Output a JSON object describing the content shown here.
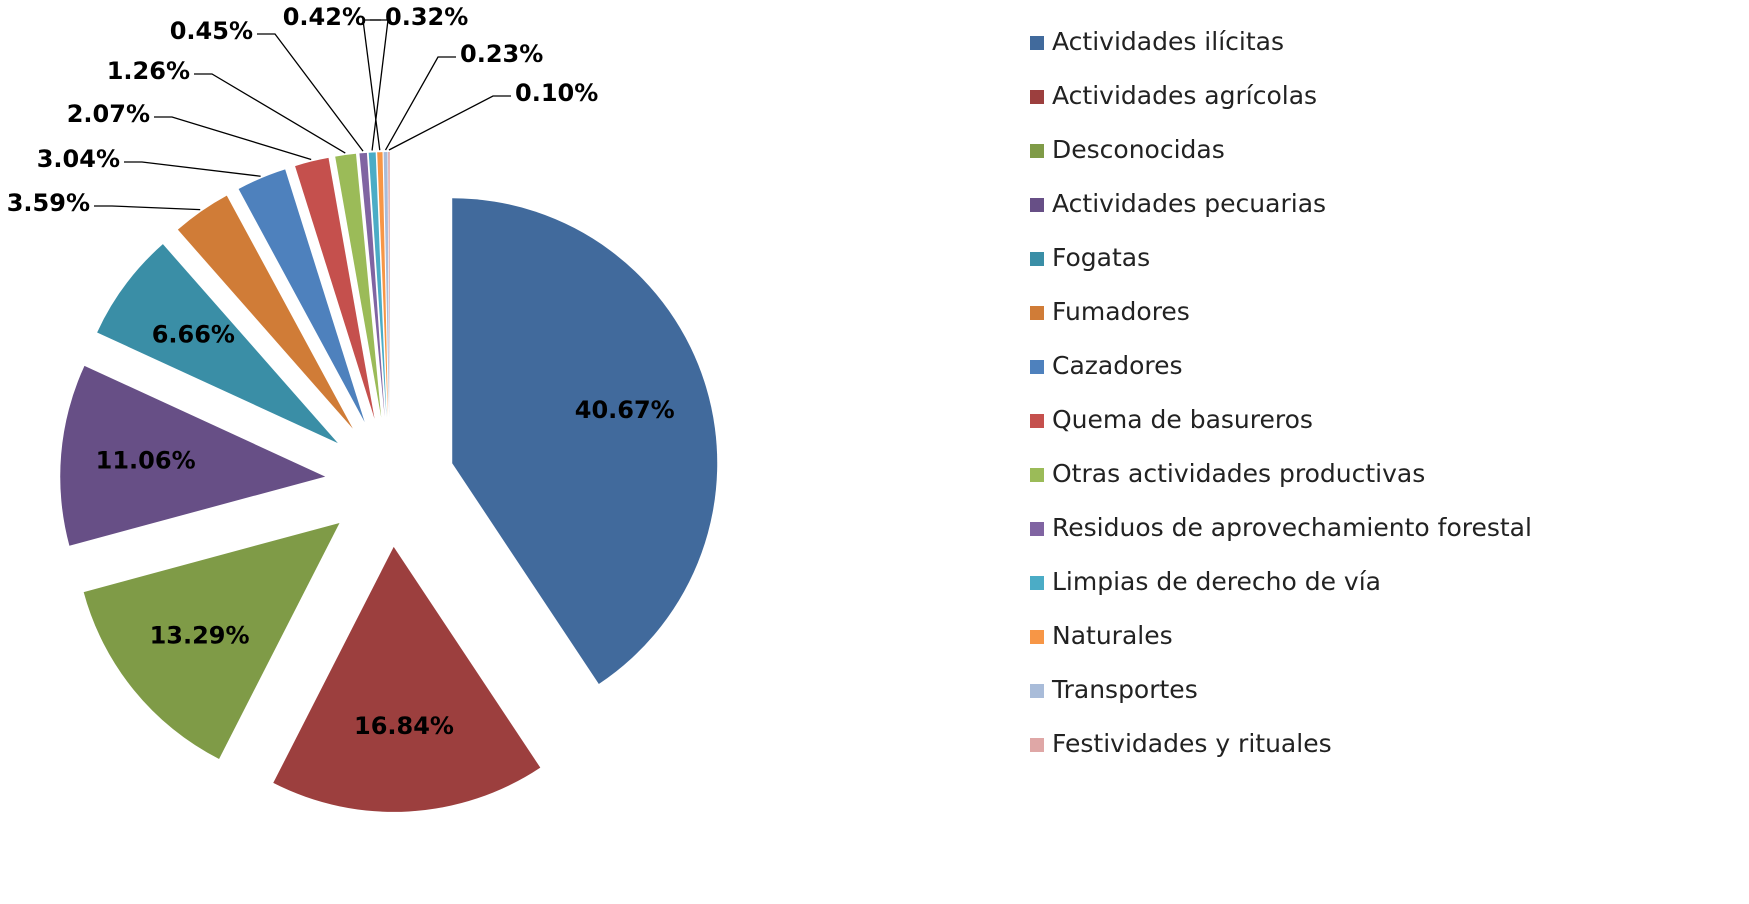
{
  "chart_data": {
    "type": "pie",
    "categories": [
      "Actividades ilícitas",
      "Actividades agrícolas",
      "Desconocidas",
      "Actividades pecuarias",
      "Fogatas",
      "Fumadores",
      "Cazadores",
      "Quema de basureros",
      "Otras actividades productivas",
      "Residuos de aprovechamiento forestal",
      "Limpias de derecho de vía",
      "Naturales",
      "Transportes",
      "Festividades y rituales"
    ],
    "values": [
      40.67,
      16.84,
      13.29,
      11.06,
      6.66,
      3.59,
      3.04,
      2.07,
      1.26,
      0.45,
      0.42,
      0.32,
      0.23,
      0.1
    ],
    "value_labels": [
      "40.67%",
      "16.84%",
      "13.29%",
      "11.06%",
      "6.66%",
      "3.59%",
      "3.04%",
      "2.07%",
      "1.26%",
      "0.45%",
      "0.42%",
      "0.32%",
      "0.23%",
      "0.10%"
    ],
    "colors": [
      "#416a9c",
      "#9c3f3e",
      "#7f9b47",
      "#674f86",
      "#3a8ea6",
      "#d07c37",
      "#4e81bd",
      "#c5504d",
      "#9bbb58",
      "#8064a2",
      "#4bacc6",
      "#f79646",
      "#a9bcd9",
      "#dfa7a6"
    ],
    "legend": "right"
  }
}
